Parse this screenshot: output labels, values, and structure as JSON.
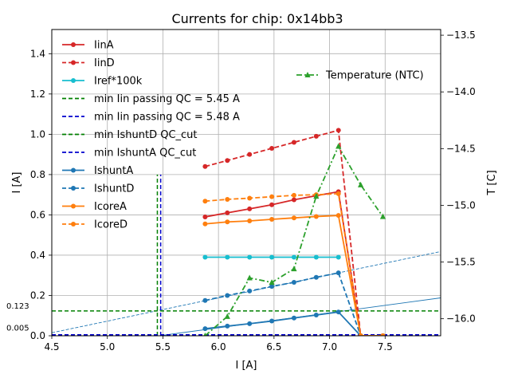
{
  "chart_data": {
    "type": "line",
    "title": "Currents for chip: 0x14bb3",
    "xlabel": "I [A]",
    "ylabel": "I [A]",
    "y2label": "T [C]",
    "xlim": [
      4.5,
      8.0
    ],
    "ylim": [
      0,
      1.52
    ],
    "y2lim": [
      -16.15,
      -13.45
    ],
    "grid": true,
    "xticks": [
      "4.5",
      "5.0",
      "5.5",
      "6.0",
      "6.5",
      "7.0",
      "7.5"
    ],
    "yticks": [
      "0.0",
      "0.2",
      "0.4",
      "0.6",
      "0.8",
      "1.0",
      "1.2",
      "1.4"
    ],
    "y2ticks": [
      "-13.5",
      "-14.0",
      "-14.5",
      "-15.0",
      "-15.5",
      "-16.0"
    ],
    "x": [
      5.88,
      6.08,
      6.28,
      6.48,
      6.68,
      6.88,
      7.08,
      7.28,
      7.48
    ],
    "series": [
      {
        "name": "IinA",
        "color": "#d62728",
        "dash": "solid",
        "marker": "circle",
        "values": [
          0.59,
          0.61,
          0.63,
          0.65,
          0.675,
          0.695,
          0.715,
          0.0,
          0.0
        ]
      },
      {
        "name": "IinD",
        "color": "#d62728",
        "dash": "dashed",
        "marker": "circle",
        "values": [
          0.84,
          0.87,
          0.9,
          0.93,
          0.96,
          0.99,
          1.02,
          0.0,
          0.0
        ]
      },
      {
        "name": "Iref*100k",
        "color": "#17becf",
        "dash": "solid",
        "marker": "circle",
        "values": [
          0.39,
          0.39,
          0.39,
          0.39,
          0.39,
          0.39,
          0.39,
          null,
          null
        ]
      },
      {
        "name": "IshuntA",
        "color": "#1f77b4",
        "dash": "solid",
        "marker": "circle",
        "values": [
          0.035,
          0.048,
          0.06,
          0.073,
          0.088,
          0.103,
          0.118,
          0.0,
          0.0
        ]
      },
      {
        "name": "IshuntD",
        "color": "#1f77b4",
        "dash": "dashed",
        "marker": "circle",
        "values": [
          0.175,
          0.2,
          0.222,
          0.245,
          0.265,
          0.29,
          0.312,
          0.0,
          0.0
        ]
      },
      {
        "name": "IcoreA",
        "color": "#ff7f0e",
        "dash": "solid",
        "marker": "circle",
        "values": [
          0.555,
          0.565,
          0.57,
          0.578,
          0.585,
          0.592,
          0.597,
          0.0,
          0.0
        ]
      },
      {
        "name": "IcoreD",
        "color": "#ff7f0e",
        "dash": "dashed",
        "marker": "circle",
        "values": [
          0.668,
          0.677,
          0.683,
          0.69,
          0.697,
          0.7,
          0.705,
          0.0,
          0.0
        ]
      }
    ],
    "temperature_series": {
      "name": "Temperature (NTC)",
      "color": "#2ca02c",
      "dash": "dashdot",
      "marker": "triangle",
      "axis": "right",
      "values": [
        -16.15,
        -15.98,
        -15.64,
        -15.68,
        -15.56,
        -14.92,
        -14.48,
        -14.82,
        -15.1
      ]
    },
    "qc_lines": [
      {
        "name": "min Iin passing QC = 5.45 A",
        "color": "#008000",
        "orientation": "vertical",
        "value": 5.45,
        "ymax": 0.8
      },
      {
        "name": "min Iin passing QC = 5.48 A",
        "color": "#0000cd",
        "orientation": "vertical",
        "value": 5.48,
        "ymax": 0.8
      },
      {
        "name": "min IshuntD QC_cut",
        "color": "#008000",
        "orientation": "horizontal",
        "value": 0.123,
        "label": "0.123"
      },
      {
        "name": "min IshuntA QC_cut",
        "color": "#0000cd",
        "orientation": "horizontal",
        "value": 0.005,
        "label": "0.005"
      }
    ],
    "fit_lines": [
      {
        "name": "IshuntD fit",
        "color": "#1f77b4",
        "dash": "dashed",
        "points": [
          [
            4.5,
            0.015
          ],
          [
            8.0,
            0.418
          ]
        ]
      },
      {
        "name": "IshuntA fit",
        "color": "#1f77b4",
        "dash": "solid",
        "points": [
          [
            5.47,
            0.0
          ],
          [
            8.0,
            0.188
          ]
        ]
      }
    ],
    "legend_order": [
      "IinA",
      "IinD",
      "Iref*100k",
      "min Iin passing QC = 5.45 A",
      "min Iin passing QC = 5.48 A",
      "min IshuntD QC_cut",
      "min IshuntA QC_cut",
      "IshuntA",
      "IshuntD",
      "IcoreA",
      "IcoreD"
    ],
    "legend_location": "upper-left",
    "legend2_location": "upper-right"
  }
}
